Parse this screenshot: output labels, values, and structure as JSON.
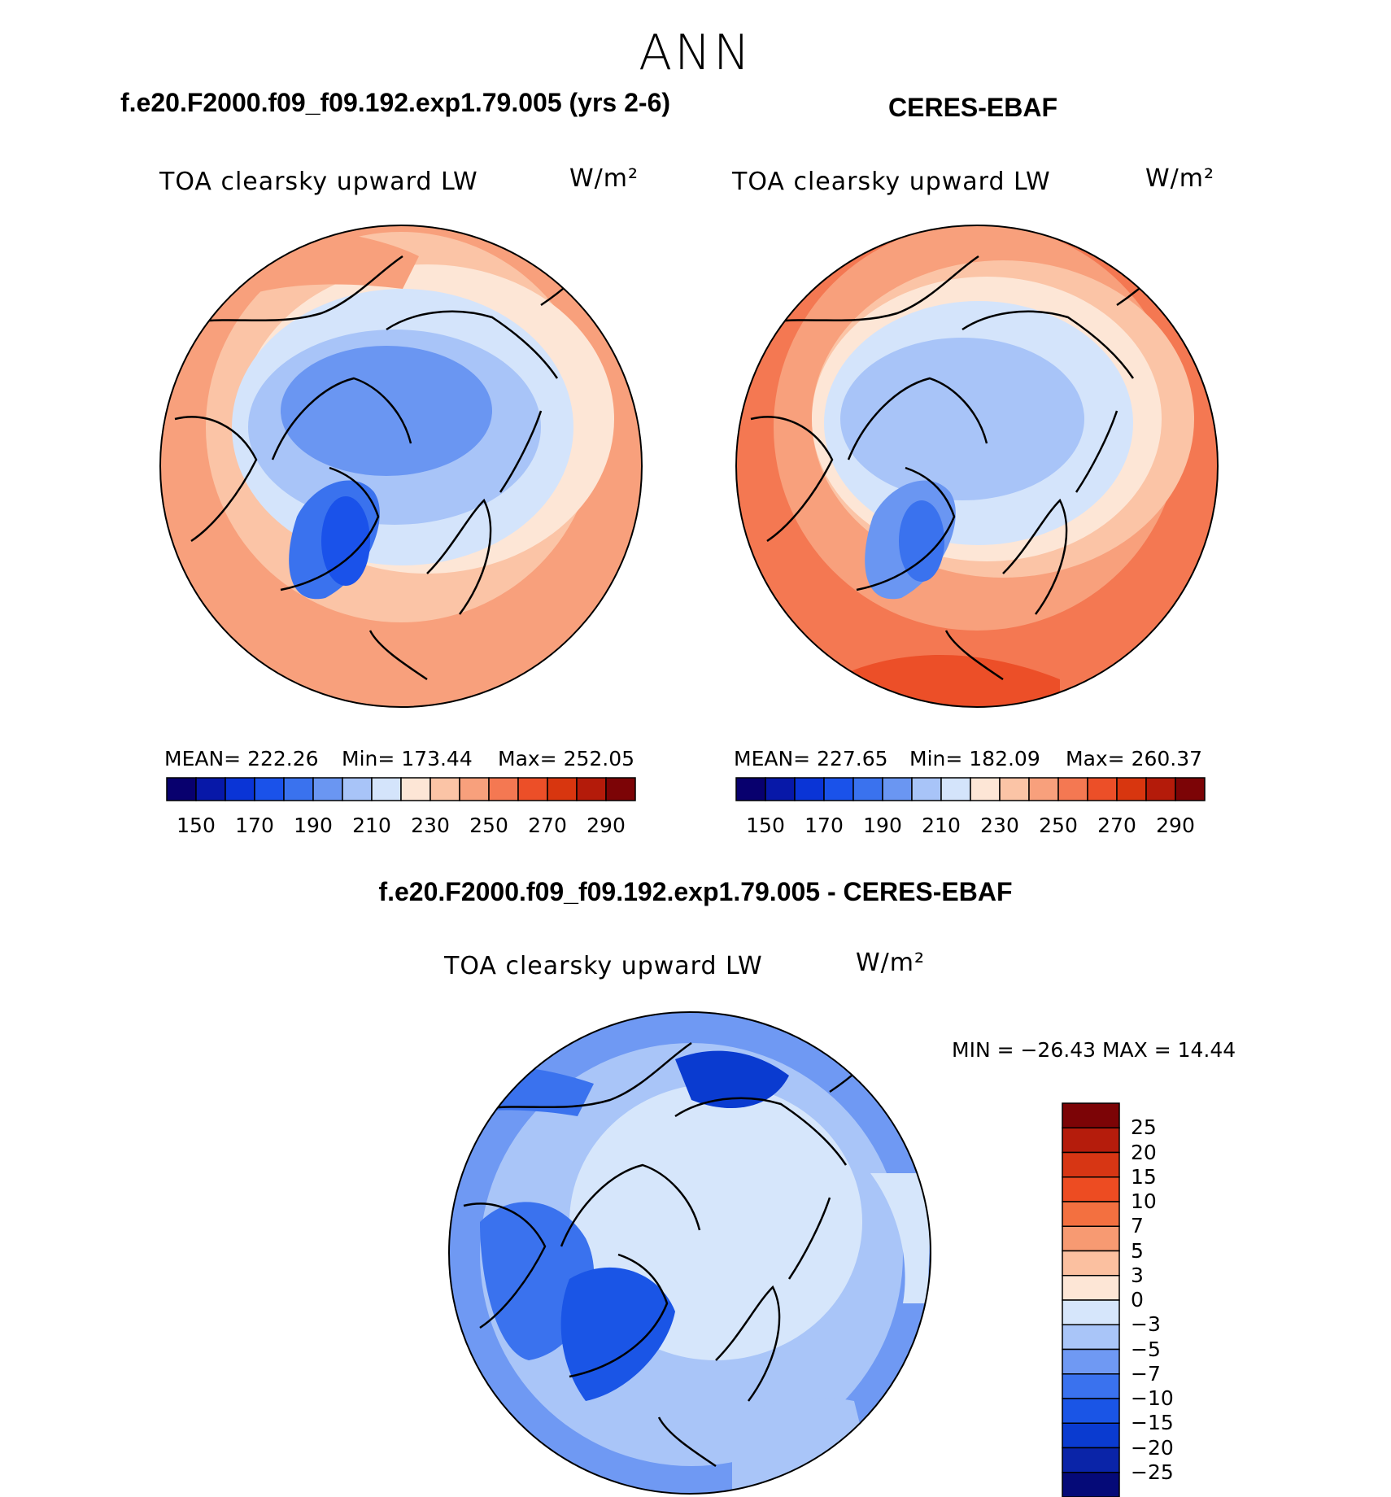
{
  "title": "ANN",
  "colors": {
    "abs_scale": [
      "#08006e",
      "#0718a8",
      "#0a34d6",
      "#1a52ea",
      "#3a72ee",
      "#6a96f2",
      "#a8c4f8",
      "#d4e4fb",
      "#fde6d6",
      "#fbc4a6",
      "#f8a07c",
      "#f47852",
      "#ec4f28",
      "#d8360f",
      "#b41b0a",
      "#7c0406"
    ],
    "diff_scale": [
      "#050a78",
      "#0a24a8",
      "#0a3bd0",
      "#1a55e6",
      "#3a72ee",
      "#6f99f3",
      "#a9c5f8",
      "#d6e6fb",
      "#fde6d6",
      "#fbc0a0",
      "#f79a72",
      "#f37040",
      "#ed4c22",
      "#d73614",
      "#b51c0c",
      "#7c0406"
    ],
    "land_outline": "#000000"
  },
  "panels": {
    "model": {
      "case_title": "f.e20.F2000.f09_f09.192.exp1.79.005 (yrs 2-6)",
      "var_label": "TOA clearsky upward LW",
      "units": "W/m²",
      "mean": "MEAN= 222.26",
      "min": "Min= 173.44",
      "max": "Max= 252.05",
      "tick_labels": [
        "150",
        "170",
        "190",
        "210",
        "230",
        "250",
        "270",
        "290"
      ]
    },
    "obs": {
      "case_title": "CERES-EBAF",
      "var_label": "TOA clearsky upward LW",
      "units": "W/m²",
      "mean": "MEAN= 227.65",
      "min": "Min= 182.09",
      "max": "Max= 260.37",
      "tick_labels": [
        "150",
        "170",
        "190",
        "210",
        "230",
        "250",
        "270",
        "290"
      ]
    },
    "diff": {
      "case_title": "f.e20.F2000.f09_f09.192.exp1.79.005 - CERES-EBAF",
      "var_label": "TOA clearsky upward LW",
      "units": "W/m²",
      "minmax": "MIN = −26.43 MAX =   14.44",
      "tick_labels": [
        "25",
        "20",
        "15",
        "10",
        "7",
        "5",
        "3",
        "0",
        "−3",
        "−5",
        "−7",
        "−10",
        "−15",
        "−20",
        "−25"
      ]
    }
  }
}
